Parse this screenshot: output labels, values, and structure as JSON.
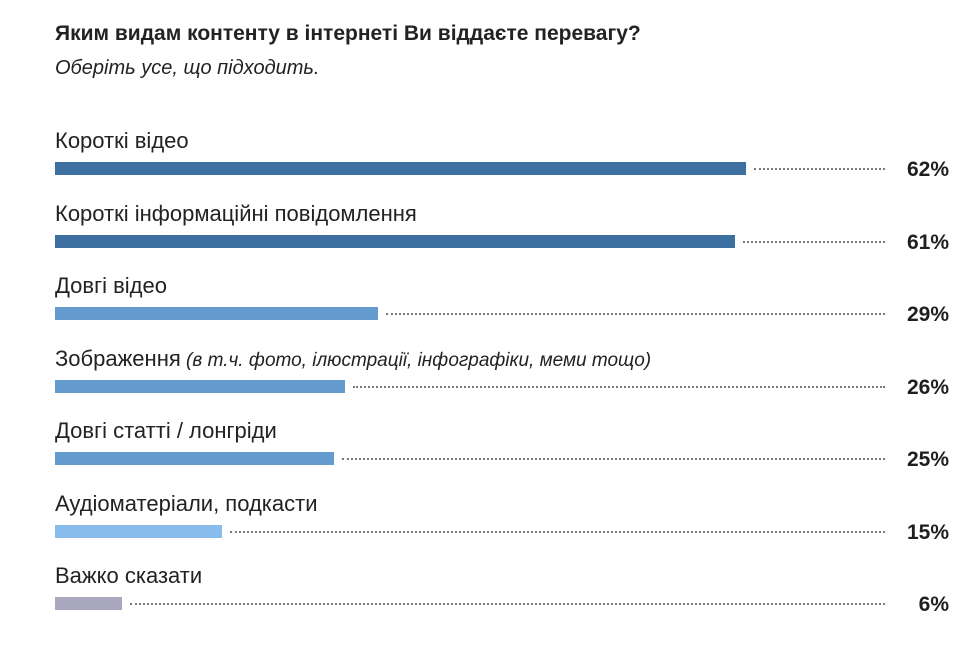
{
  "question": "Яким видам контенту в інтернеті Ви віддаєте перевагу?",
  "instruction": "Оберіть усе, що підходить.",
  "chart_data": {
    "type": "bar",
    "orientation": "horizontal",
    "title": "Яким видам контенту в інтернеті Ви віддаєте перевагу?",
    "subtitle": "Оберіть усе, що підходить.",
    "categories": [
      "Короткі відео",
      "Короткі інформаційні повідомлення",
      "Довгі відео",
      "Зображення",
      "Довгі статті / лонгріди",
      "Аудіоматеріали, подкасти",
      "Важко сказати"
    ],
    "values": [
      62,
      61,
      29,
      26,
      25,
      15,
      6
    ],
    "value_labels": [
      "62%",
      "61%",
      "29%",
      "26%",
      "25%",
      "15%",
      "6%"
    ],
    "category_notes": [
      "",
      "",
      "",
      "(в т.ч. фото, ілюстрації, інфографіки, меми тощо)",
      "",
      "",
      ""
    ],
    "xlim": [
      0,
      100
    ],
    "unit": "%",
    "grid": false,
    "legend": "none",
    "bar_colors": [
      "#3d6fa0",
      "#3d6fa0",
      "#659cd0",
      "#659cd0",
      "#659cd0",
      "#88bcec",
      "#aaa8bf"
    ]
  }
}
